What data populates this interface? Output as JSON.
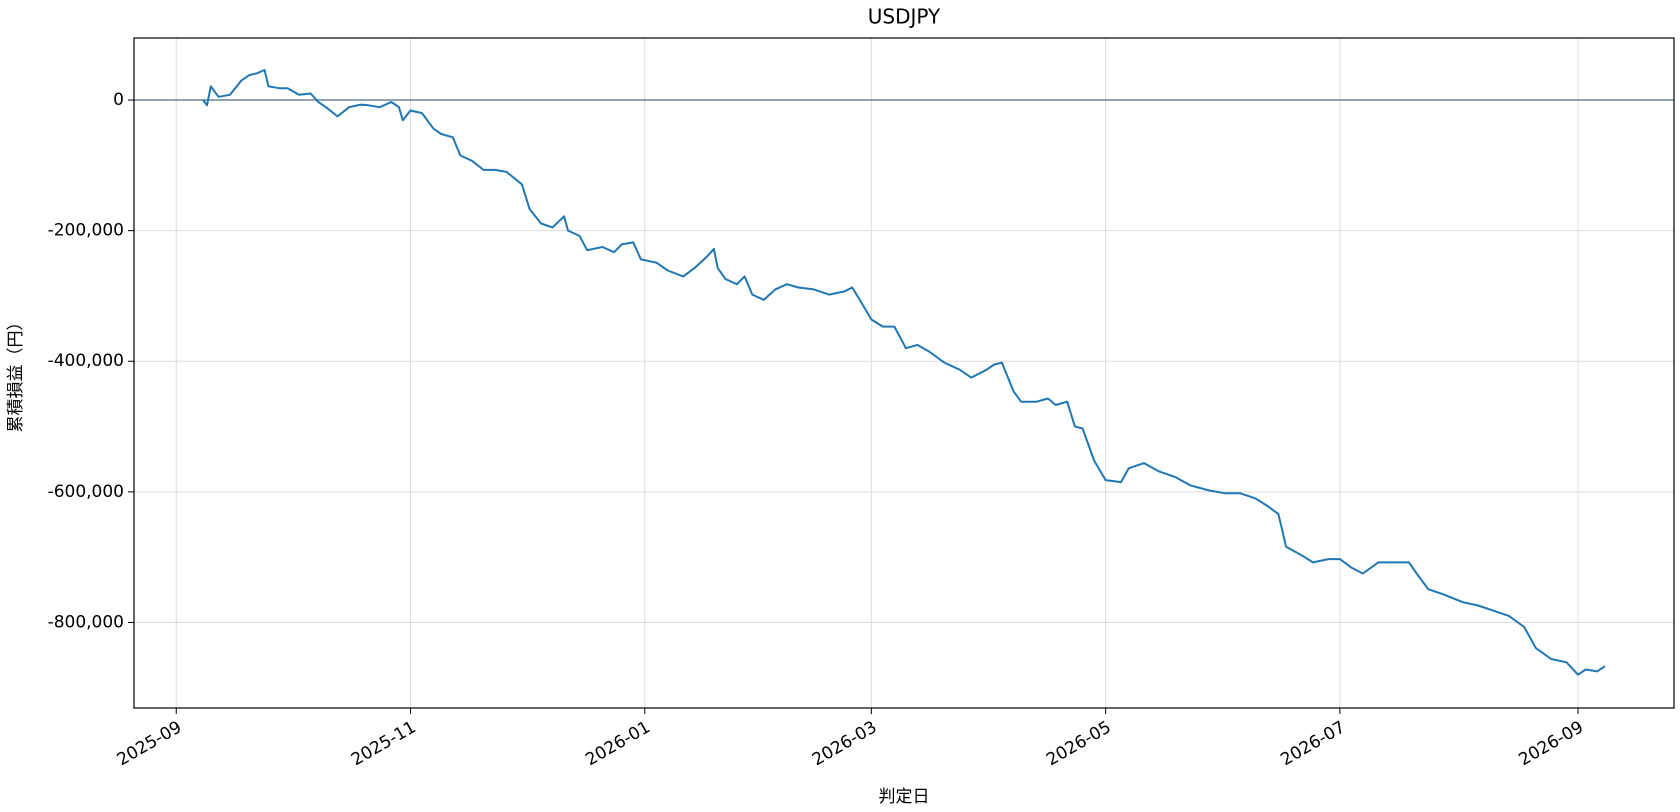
{
  "chart_data": {
    "type": "line",
    "title": "USDJPY",
    "xlabel": "判定日",
    "ylabel": "累積損益（円）",
    "x": [
      "2025-09-08",
      "2025-09-09",
      "2025-09-10",
      "2025-09-12",
      "2025-09-15",
      "2025-09-18",
      "2025-09-20",
      "2025-09-22",
      "2025-09-24",
      "2025-09-25",
      "2025-09-28",
      "2025-09-30",
      "2025-10-03",
      "2025-10-06",
      "2025-10-08",
      "2025-10-10",
      "2025-10-13",
      "2025-10-16",
      "2025-10-19",
      "2025-10-21",
      "2025-10-24",
      "2025-10-27",
      "2025-10-29",
      "2025-10-30",
      "2025-11-01",
      "2025-11-04",
      "2025-11-07",
      "2025-11-09",
      "2025-11-12",
      "2025-11-14",
      "2025-11-17",
      "2025-11-20",
      "2025-11-23",
      "2025-11-26",
      "2025-11-30",
      "2025-12-02",
      "2025-12-05",
      "2025-12-08",
      "2025-12-11",
      "2025-12-12",
      "2025-12-15",
      "2025-12-17",
      "2025-12-21",
      "2025-12-24",
      "2025-12-26",
      "2025-12-29",
      "2025-12-31",
      "2026-01-04",
      "2026-01-07",
      "2026-01-11",
      "2026-01-14",
      "2026-01-17",
      "2026-01-19",
      "2026-01-20",
      "2026-01-22",
      "2026-01-25",
      "2026-01-27",
      "2026-01-29",
      "2026-02-01",
      "2026-02-04",
      "2026-02-07",
      "2026-02-10",
      "2026-02-14",
      "2026-02-18",
      "2026-02-22",
      "2026-02-24",
      "2026-02-26",
      "2026-03-01",
      "2026-03-04",
      "2026-03-07",
      "2026-03-10",
      "2026-03-13",
      "2026-03-16",
      "2026-03-20",
      "2026-03-24",
      "2026-03-27",
      "2026-03-31",
      "2026-04-02",
      "2026-04-04",
      "2026-04-07",
      "2026-04-09",
      "2026-04-13",
      "2026-04-16",
      "2026-04-18",
      "2026-04-21",
      "2026-04-23",
      "2026-04-25",
      "2026-04-28",
      "2026-05-01",
      "2026-05-05",
      "2026-05-07",
      "2026-05-11",
      "2026-05-15",
      "2026-05-19",
      "2026-05-23",
      "2026-05-28",
      "2026-06-01",
      "2026-06-05",
      "2026-06-09",
      "2026-06-12",
      "2026-06-15",
      "2026-06-17",
      "2026-06-21",
      "2026-06-24",
      "2026-06-28",
      "2026-07-01",
      "2026-07-04",
      "2026-07-07",
      "2026-07-11",
      "2026-07-16",
      "2026-07-19",
      "2026-07-21",
      "2026-07-24",
      "2026-07-28",
      "2026-08-02",
      "2026-08-06",
      "2026-08-10",
      "2026-08-14",
      "2026-08-18",
      "2026-08-21",
      "2026-08-25",
      "2026-08-29",
      "2026-09-01",
      "2026-09-03",
      "2026-09-06",
      "2026-09-08"
    ],
    "series": [
      {
        "name": "USDJPY",
        "color": "#1f77b4",
        "values": [
          0,
          -8000,
          21000,
          5000,
          8000,
          30000,
          38000,
          41000,
          46000,
          21000,
          18000,
          18000,
          8000,
          10000,
          -3000,
          -11000,
          -25000,
          -11000,
          -7000,
          -8000,
          -11000,
          -3000,
          -11000,
          -31000,
          -16000,
          -20000,
          -44000,
          -52000,
          -57000,
          -85000,
          -93000,
          -107000,
          -107000,
          -110000,
          -129000,
          -167000,
          -189000,
          -195000,
          -178000,
          -200000,
          -208000,
          -230000,
          -225000,
          -233000,
          -221000,
          -218000,
          -244000,
          -249000,
          -261000,
          -270000,
          -257000,
          -241000,
          -228000,
          -257000,
          -274000,
          -282000,
          -270000,
          -298000,
          -306000,
          -290000,
          -282000,
          -287000,
          -290000,
          -298000,
          -293000,
          -287000,
          -306000,
          -336000,
          -347000,
          -347000,
          -380000,
          -375000,
          -385000,
          -402000,
          -413000,
          -425000,
          -413000,
          -405000,
          -402000,
          -446000,
          -462000,
          -462000,
          -457000,
          -467000,
          -462000,
          -500000,
          -503000,
          -552000,
          -582000,
          -585000,
          -564000,
          -556000,
          -569000,
          -577000,
          -590000,
          -598000,
          -602000,
          -602000,
          -610000,
          -621000,
          -634000,
          -684000,
          -697000,
          -708000,
          -703000,
          -703000,
          -716000,
          -725000,
          -708000,
          -708000,
          -708000,
          -725000,
          -749000,
          -757000,
          -769000,
          -774000,
          -782000,
          -790000,
          -807000,
          -839000,
          -856000,
          -861000,
          -880000,
          -872000,
          -875000,
          -867000
        ]
      }
    ],
    "xlim": [
      "2025-08-21",
      "2026-09-26"
    ],
    "xticks": [
      "2025-09",
      "2025-11",
      "2026-01",
      "2026-03",
      "2026-05",
      "2026-07",
      "2026-09"
    ],
    "ylim": [
      -931000,
      95000
    ],
    "yticks": [
      0,
      {
        "value": -200000,
        "label": "-200,000"
      },
      {
        "value": -400000,
        "label": "-400,000"
      },
      {
        "value": -600000,
        "label": "-600,000"
      },
      {
        "value": -800000,
        "label": "-800,000"
      }
    ],
    "hline": 0,
    "hline_color": "#4a6f8a",
    "grid": true
  }
}
